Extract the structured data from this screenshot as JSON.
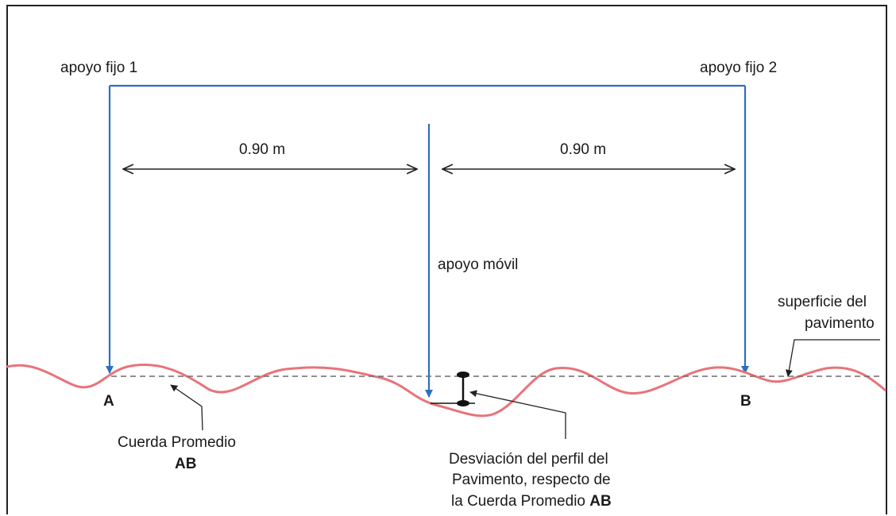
{
  "labels": {
    "fixed_support_1": "apoyo fijo 1",
    "fixed_support_2": "apoyo fijo 2",
    "distance_left": "0.90 m",
    "distance_right": "0.90 m",
    "mobile_support": "apoyo móvil",
    "surface_line1": "superficie del",
    "surface_line2": "pavimento",
    "point_a": "A",
    "point_b": "B",
    "chord_line1": "Cuerda Promedio",
    "chord_line2": "AB",
    "deviation_line1": "Desviación del perfil del",
    "deviation_line2": "Pavimento, respecto de",
    "deviation_line3_prefix": "la Cuerda Promedio ",
    "deviation_line3_bold": "AB"
  },
  "colors": {
    "support_line": "#2e6fbd",
    "surface_curve": "#e8737a",
    "chord_dash": "#6b6b6b",
    "dimension_arrow": "#222222",
    "frame": "#222222"
  }
}
